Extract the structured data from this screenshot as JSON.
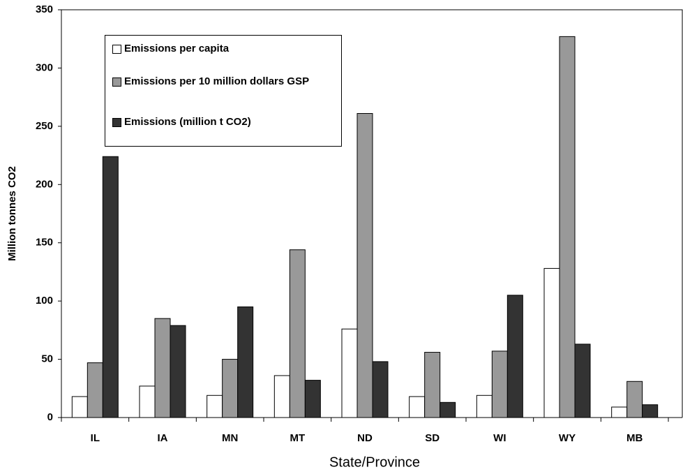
{
  "chart_data": {
    "type": "bar",
    "x_label": "State/Province",
    "y_label": "Million tonnes CO2",
    "categories": [
      "IL",
      "IA",
      "MN",
      "MT",
      "ND",
      "SD",
      "WI",
      "WY",
      "MB"
    ],
    "series": [
      {
        "name": "Emissions per capita",
        "color": "#ffffff",
        "values": [
          18,
          27,
          19,
          36,
          76,
          18,
          19,
          128,
          9
        ]
      },
      {
        "name": "Emissions per 10 million dollars GSP",
        "color": "#999999",
        "values": [
          47,
          85,
          50,
          144,
          261,
          56,
          57,
          327,
          31
        ]
      },
      {
        "name": "Emissions (million t CO2)",
        "color": "#333333",
        "values": [
          224,
          79,
          95,
          32,
          48,
          13,
          105,
          63,
          11
        ]
      }
    ],
    "ylim": [
      0,
      350
    ],
    "yticks": [
      0,
      50,
      100,
      150,
      200,
      250,
      300,
      350
    ],
    "grid": false
  }
}
